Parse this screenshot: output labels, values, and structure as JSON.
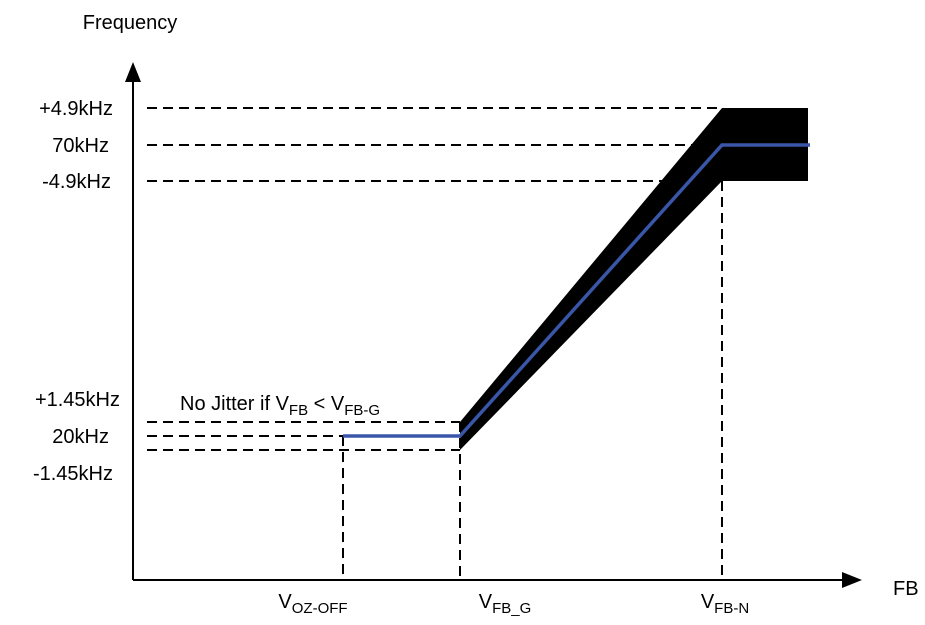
{
  "y_axis_label": "Frequency",
  "x_axis_label": "FB",
  "y_labels": [
    "+4.9kHz",
    "70kHz",
    "-4.9kHz",
    "+1.45kHz",
    "20kHz",
    "-1.45kHz"
  ],
  "annotation": {
    "prefix": "No Jitter if V",
    "sub1": "FB",
    "mid": " < V",
    "sub2": "FB-G"
  },
  "x_labels": [
    {
      "main": "V",
      "sub": "OZ-OFF"
    },
    {
      "main": "V",
      "sub": "FB_G"
    },
    {
      "main": "V",
      "sub": "FB-N"
    }
  ]
}
